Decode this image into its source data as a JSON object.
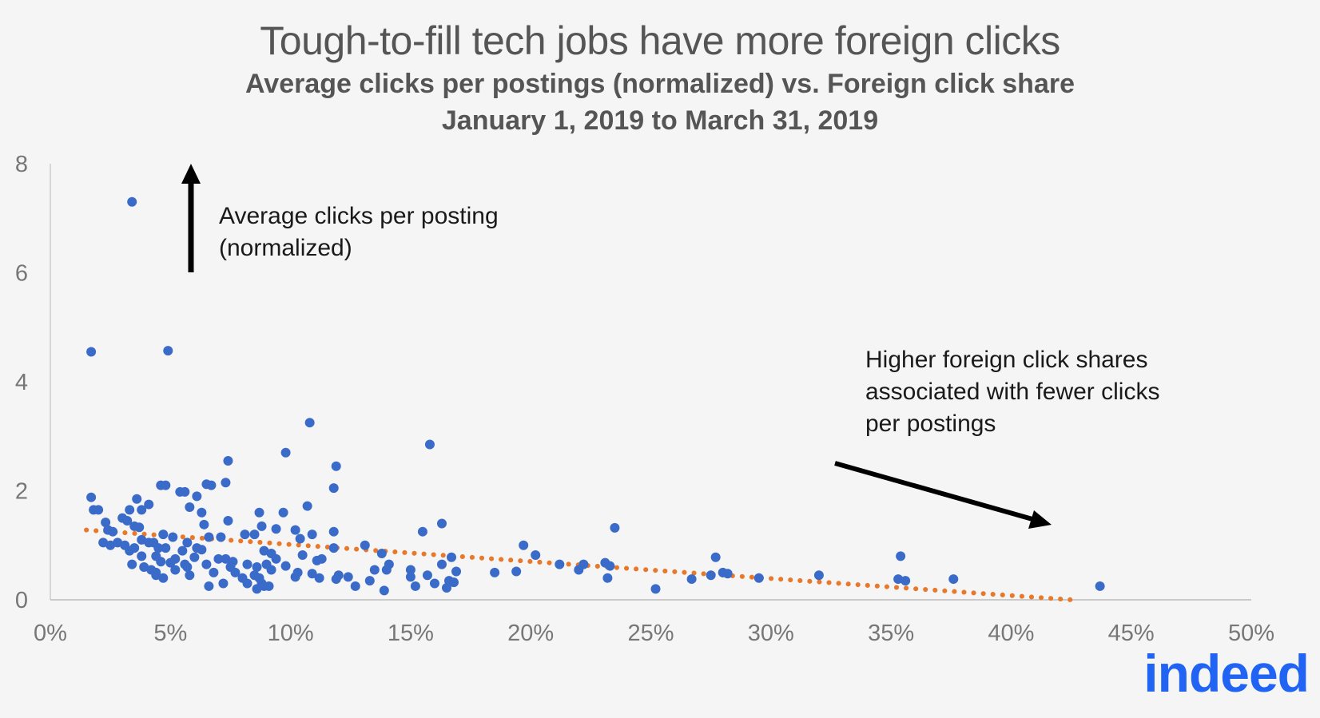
{
  "chart_data": {
    "type": "scatter",
    "title": "Tough-to-fill tech jobs have more foreign clicks",
    "subtitle_lines": [
      "Average clicks per postings (normalized) vs. Foreign click share",
      "January 1, 2019 to March 31, 2019"
    ],
    "xlim": [
      0,
      0.5
    ],
    "ylim": [
      0,
      8
    ],
    "x_ticks": [
      0,
      0.05,
      0.1,
      0.15,
      0.2,
      0.25,
      0.3,
      0.35,
      0.4,
      0.45,
      0.5
    ],
    "x_tick_labels": [
      "0%",
      "5%",
      "10%",
      "15%",
      "20%",
      "25%",
      "30%",
      "35%",
      "40%",
      "45%",
      "50%"
    ],
    "y_ticks": [
      0,
      2,
      4,
      6,
      8
    ],
    "y_tick_labels": [
      "0",
      "2",
      "4",
      "6",
      "8"
    ],
    "grid": false,
    "colors": {
      "points": "#3a6bc9",
      "trend": "#e8782a",
      "arrow": "#000000"
    },
    "trendline": {
      "style": "dotted",
      "from": [
        0.015,
        1.28
      ],
      "to": [
        0.425,
        0.0
      ]
    },
    "annotations": {
      "up_arrow_lines": [
        "Average clicks per posting",
        "(normalized)"
      ],
      "down_arrow_lines": [
        "Higher foreign click shares",
        "associated with fewer clicks",
        "per postings"
      ]
    },
    "points": [
      [
        0.034,
        7.3
      ],
      [
        0.017,
        4.55
      ],
      [
        0.049,
        4.57
      ],
      [
        0.108,
        3.25
      ],
      [
        0.158,
        2.85
      ],
      [
        0.098,
        2.7
      ],
      [
        0.074,
        2.55
      ],
      [
        0.119,
        2.45
      ],
      [
        0.046,
        2.1
      ],
      [
        0.048,
        2.1
      ],
      [
        0.065,
        2.12
      ],
      [
        0.067,
        2.1
      ],
      [
        0.073,
        2.15
      ],
      [
        0.118,
        2.05
      ],
      [
        0.054,
        1.98
      ],
      [
        0.056,
        1.98
      ],
      [
        0.061,
        1.9
      ],
      [
        0.017,
        1.88
      ],
      [
        0.036,
        1.85
      ],
      [
        0.041,
        1.75
      ],
      [
        0.033,
        1.65
      ],
      [
        0.038,
        1.65
      ],
      [
        0.018,
        1.65
      ],
      [
        0.02,
        1.65
      ],
      [
        0.058,
        1.7
      ],
      [
        0.063,
        1.6
      ],
      [
        0.087,
        1.6
      ],
      [
        0.097,
        1.6
      ],
      [
        0.107,
        1.72
      ],
      [
        0.03,
        1.5
      ],
      [
        0.032,
        1.45
      ],
      [
        0.023,
        1.42
      ],
      [
        0.074,
        1.45
      ],
      [
        0.064,
        1.38
      ],
      [
        0.035,
        1.35
      ],
      [
        0.037,
        1.33
      ],
      [
        0.024,
        1.28
      ],
      [
        0.026,
        1.25
      ],
      [
        0.088,
        1.35
      ],
      [
        0.094,
        1.3
      ],
      [
        0.102,
        1.28
      ],
      [
        0.163,
        1.4
      ],
      [
        0.155,
        1.25
      ],
      [
        0.118,
        1.25
      ],
      [
        0.109,
        1.2
      ],
      [
        0.235,
        1.32
      ],
      [
        0.081,
        1.2
      ],
      [
        0.085,
        1.2
      ],
      [
        0.047,
        1.2
      ],
      [
        0.051,
        1.15
      ],
      [
        0.066,
        1.15
      ],
      [
        0.071,
        1.15
      ],
      [
        0.104,
        1.12
      ],
      [
        0.038,
        1.1
      ],
      [
        0.041,
        1.05
      ],
      [
        0.043,
        1.05
      ],
      [
        0.022,
        1.05
      ],
      [
        0.025,
        1.0
      ],
      [
        0.028,
        1.05
      ],
      [
        0.031,
        1.0
      ],
      [
        0.057,
        1.05
      ],
      [
        0.061,
        0.95
      ],
      [
        0.131,
        1.0
      ],
      [
        0.197,
        1.0
      ],
      [
        0.118,
        0.95
      ],
      [
        0.035,
        0.95
      ],
      [
        0.033,
        0.9
      ],
      [
        0.045,
        0.95
      ],
      [
        0.048,
        0.95
      ],
      [
        0.055,
        0.9
      ],
      [
        0.063,
        0.92
      ],
      [
        0.089,
        0.9
      ],
      [
        0.092,
        0.85
      ],
      [
        0.105,
        0.82
      ],
      [
        0.138,
        0.85
      ],
      [
        0.167,
        0.78
      ],
      [
        0.202,
        0.82
      ],
      [
        0.277,
        0.78
      ],
      [
        0.354,
        0.8
      ],
      [
        0.038,
        0.8
      ],
      [
        0.044,
        0.8
      ],
      [
        0.052,
        0.75
      ],
      [
        0.06,
        0.78
      ],
      [
        0.07,
        0.75
      ],
      [
        0.073,
        0.75
      ],
      [
        0.076,
        0.7
      ],
      [
        0.094,
        0.75
      ],
      [
        0.111,
        0.72
      ],
      [
        0.113,
        0.75
      ],
      [
        0.141,
        0.65
      ],
      [
        0.163,
        0.65
      ],
      [
        0.212,
        0.65
      ],
      [
        0.222,
        0.65
      ],
      [
        0.231,
        0.68
      ],
      [
        0.046,
        0.7
      ],
      [
        0.05,
        0.68
      ],
      [
        0.056,
        0.65
      ],
      [
        0.065,
        0.65
      ],
      [
        0.082,
        0.65
      ],
      [
        0.09,
        0.65
      ],
      [
        0.098,
        0.62
      ],
      [
        0.034,
        0.65
      ],
      [
        0.039,
        0.6
      ],
      [
        0.057,
        0.6
      ],
      [
        0.075,
        0.6
      ],
      [
        0.086,
        0.6
      ],
      [
        0.092,
        0.55
      ],
      [
        0.135,
        0.55
      ],
      [
        0.14,
        0.55
      ],
      [
        0.15,
        0.55
      ],
      [
        0.169,
        0.52
      ],
      [
        0.185,
        0.5
      ],
      [
        0.194,
        0.52
      ],
      [
        0.22,
        0.55
      ],
      [
        0.233,
        0.62
      ],
      [
        0.28,
        0.5
      ],
      [
        0.282,
        0.48
      ],
      [
        0.042,
        0.55
      ],
      [
        0.044,
        0.5
      ],
      [
        0.052,
        0.55
      ],
      [
        0.068,
        0.5
      ],
      [
        0.077,
        0.5
      ],
      [
        0.085,
        0.45
      ],
      [
        0.103,
        0.5
      ],
      [
        0.109,
        0.48
      ],
      [
        0.275,
        0.45
      ],
      [
        0.32,
        0.45
      ],
      [
        0.044,
        0.45
      ],
      [
        0.047,
        0.4
      ],
      [
        0.058,
        0.45
      ],
      [
        0.08,
        0.4
      ],
      [
        0.087,
        0.4
      ],
      [
        0.102,
        0.42
      ],
      [
        0.12,
        0.45
      ],
      [
        0.124,
        0.42
      ],
      [
        0.133,
        0.35
      ],
      [
        0.15,
        0.42
      ],
      [
        0.157,
        0.45
      ],
      [
        0.166,
        0.35
      ],
      [
        0.232,
        0.4
      ],
      [
        0.267,
        0.38
      ],
      [
        0.295,
        0.4
      ],
      [
        0.353,
        0.38
      ],
      [
        0.356,
        0.35
      ],
      [
        0.376,
        0.38
      ],
      [
        0.072,
        0.3
      ],
      [
        0.082,
        0.3
      ],
      [
        0.088,
        0.3
      ],
      [
        0.112,
        0.4
      ],
      [
        0.119,
        0.38
      ],
      [
        0.16,
        0.3
      ],
      [
        0.168,
        0.32
      ],
      [
        0.066,
        0.25
      ],
      [
        0.089,
        0.25
      ],
      [
        0.091,
        0.25
      ],
      [
        0.127,
        0.25
      ],
      [
        0.152,
        0.25
      ],
      [
        0.165,
        0.22
      ],
      [
        0.086,
        0.2
      ],
      [
        0.139,
        0.17
      ],
      [
        0.252,
        0.2
      ],
      [
        0.437,
        0.25
      ]
    ]
  },
  "logo": {
    "text": "indeed",
    "color": "#2164f3"
  }
}
